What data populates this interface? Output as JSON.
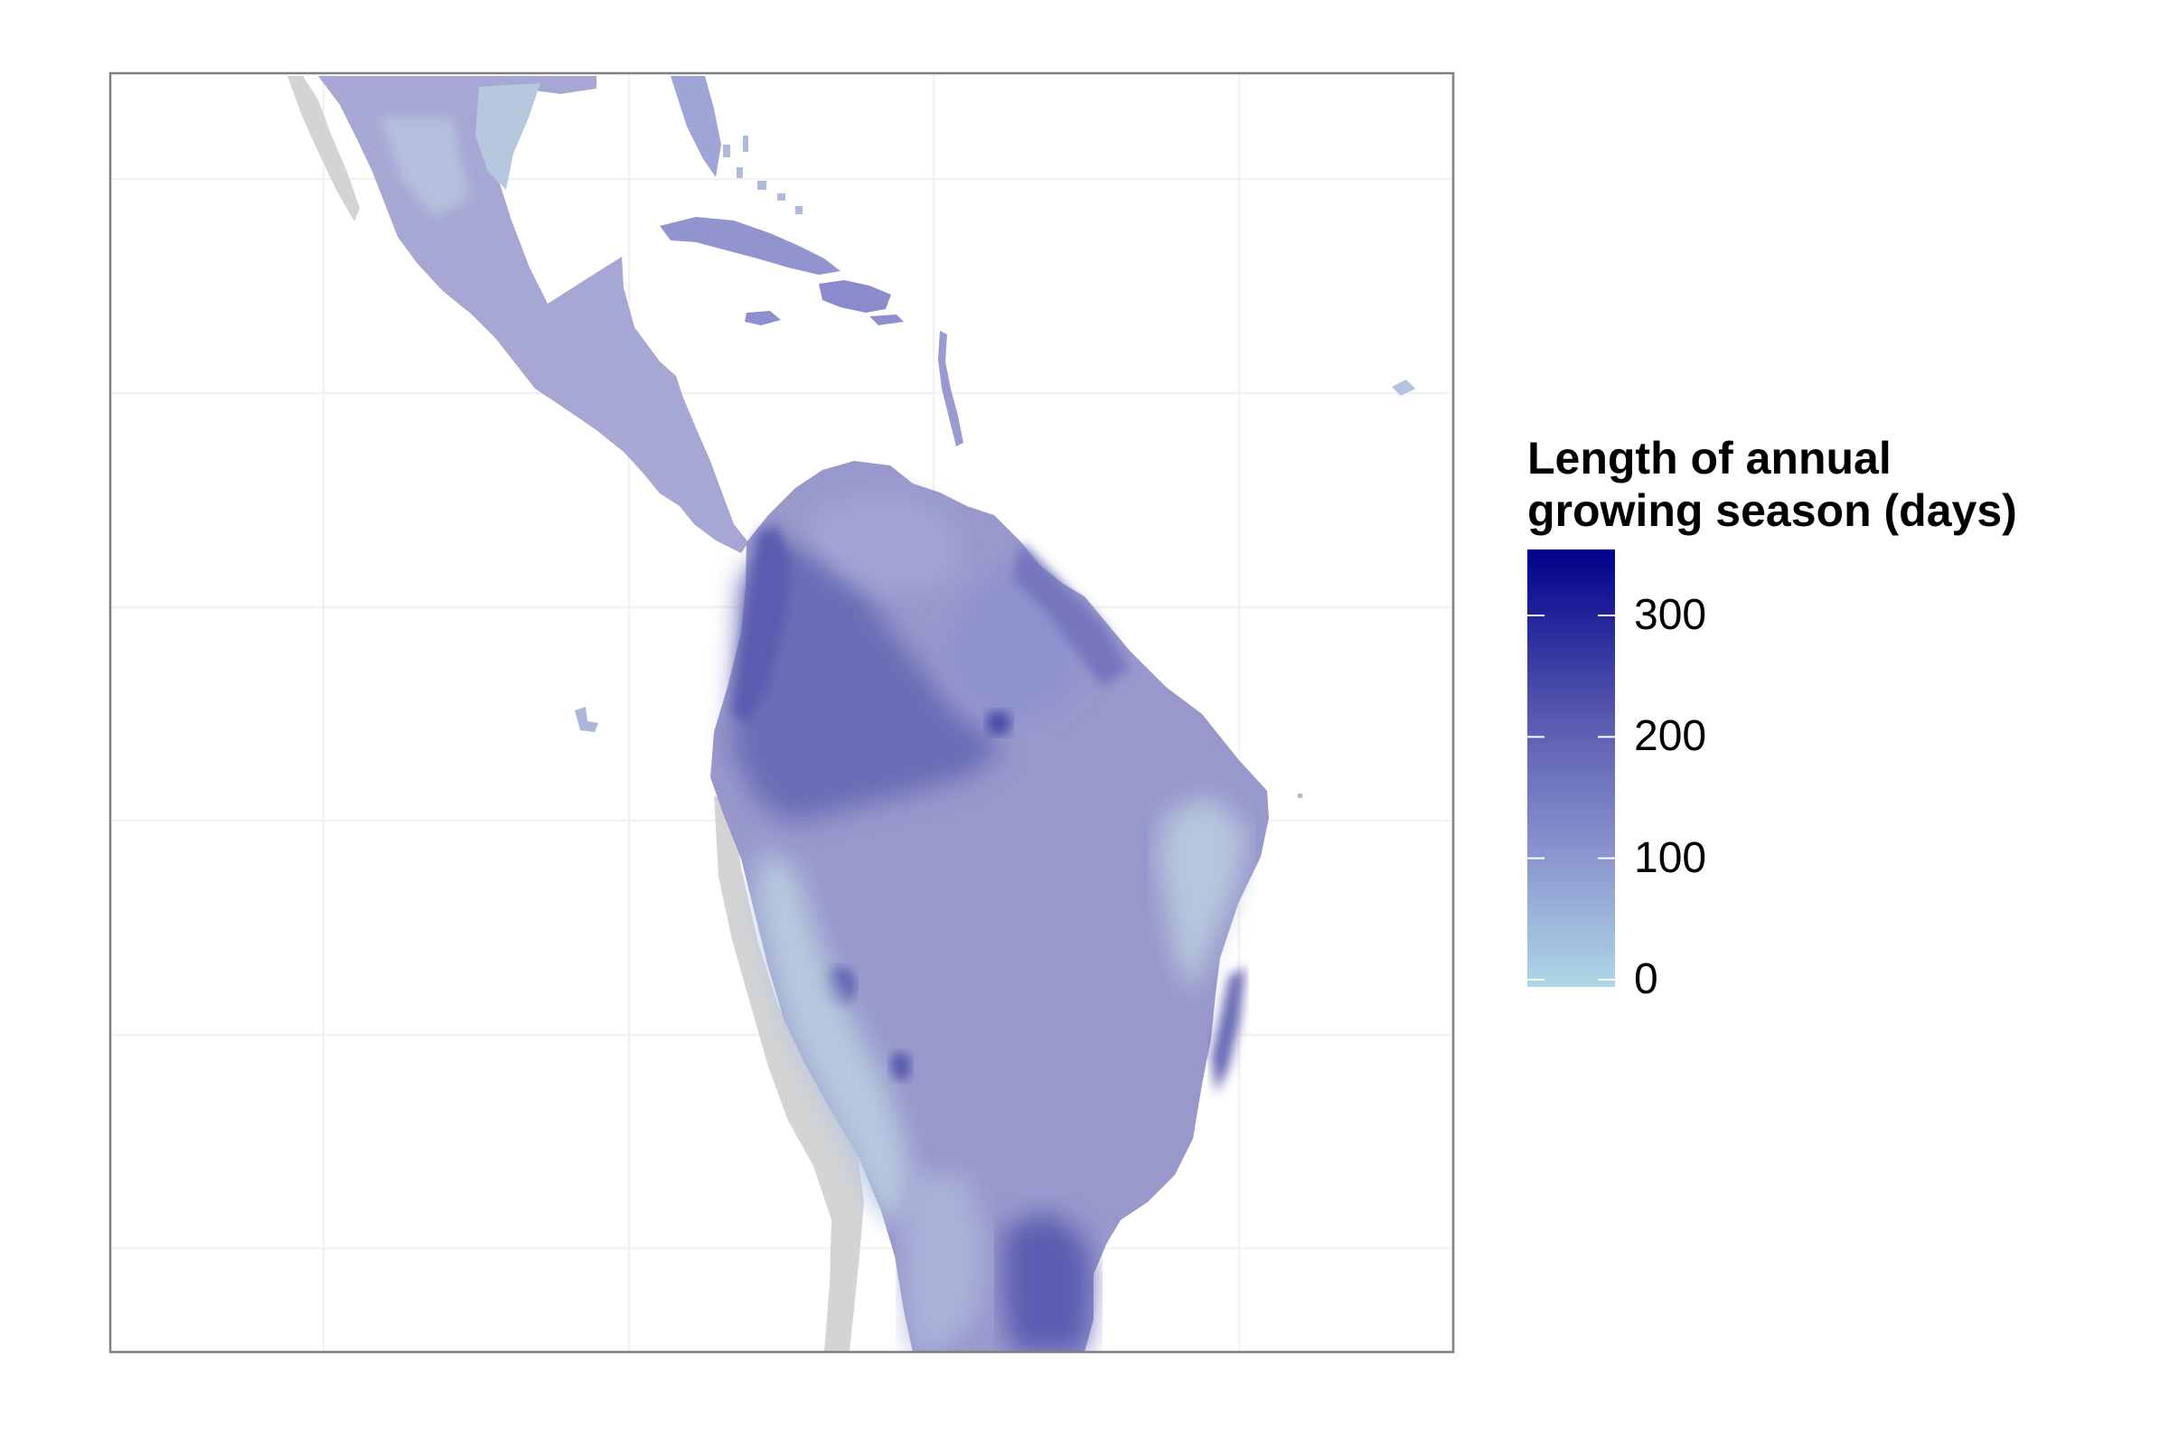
{
  "legend": {
    "title_line1": "Length of annual",
    "title_line2": "growing season (days)",
    "scale_low_color": "#add8e6",
    "scale_high_color": "#00008b",
    "range": [
      0,
      365
    ],
    "ticks": [
      {
        "value": 0,
        "label": "0"
      },
      {
        "value": 100,
        "label": "100"
      },
      {
        "value": 200,
        "label": "200"
      },
      {
        "value": 300,
        "label": "300"
      }
    ]
  },
  "map": {
    "region": "Central and South America",
    "land_no_data_color": "#d3d3d3",
    "panel_border_color": "#7f7f7f",
    "grid_color": "#f3f3f3"
  }
}
